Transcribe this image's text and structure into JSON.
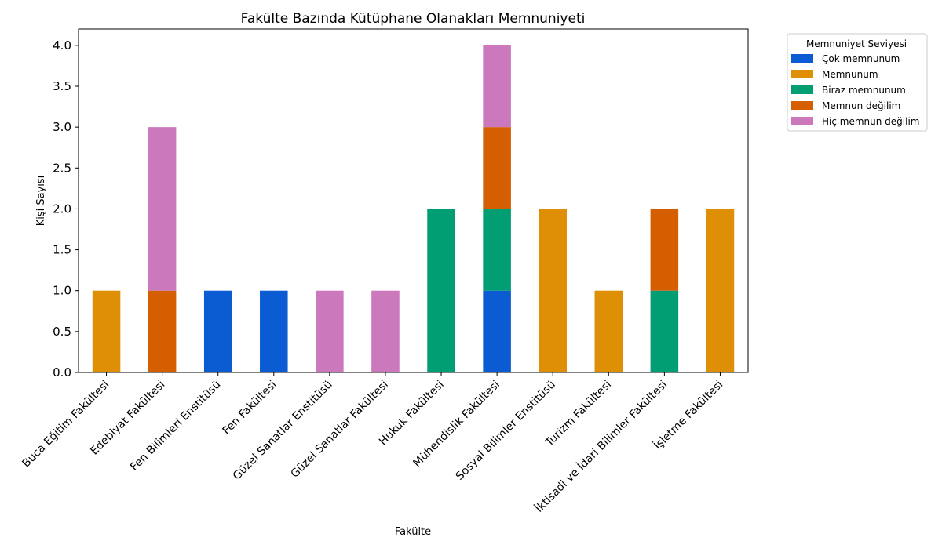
{
  "chart_data": {
    "type": "bar",
    "stacked": true,
    "title": "Fakülte Bazında Kütüphane Olanakları Memnuniyeti",
    "xlabel": "Fakülte",
    "ylabel": "Kişi Sayısı",
    "ylim": [
      0,
      4.2
    ],
    "yticks": [
      "0.0",
      "0.5",
      "1.0",
      "1.5",
      "2.0",
      "2.5",
      "3.0",
      "3.5",
      "4.0"
    ],
    "grid": false,
    "legend_title": "Memnuniyet Seviyesi",
    "legend_position": "upper-right-outside",
    "categories": [
      "Buca Eğitim Fakültesi",
      "Edebiyat Fakültesi",
      "Fen Bilimleri Enstitüsü",
      "Fen Fakültesi",
      "Güzel Sanatlar Enstitüsü",
      "Güzel Sanatlar Fakültesi",
      "Hukuk Fakültesi",
      "Mühendislik Fakültesi",
      "Sosyal Bilimler Enstitüsü",
      "Turizm Fakültesi",
      "İktisadi ve İdari Bilimler Fakültesi",
      "İşletme Fakültesi"
    ],
    "series": [
      {
        "name": "Çok memnunum",
        "color": "#0b5bd3",
        "values": [
          0,
          0,
          1,
          1,
          0,
          0,
          0,
          1,
          0,
          0,
          0,
          0
        ]
      },
      {
        "name": "Memnunum",
        "color": "#de8f05",
        "values": [
          1,
          0,
          0,
          0,
          0,
          0,
          0,
          0,
          2,
          1,
          0,
          2
        ]
      },
      {
        "name": "Biraz memnunum",
        "color": "#029e73",
        "values": [
          0,
          0,
          0,
          0,
          0,
          0,
          2,
          1,
          0,
          0,
          1,
          0
        ]
      },
      {
        "name": "Memnun değilim",
        "color": "#d55e00",
        "values": [
          0,
          1,
          0,
          0,
          0,
          0,
          0,
          1,
          0,
          0,
          1,
          0
        ]
      },
      {
        "name": "Hiç memnun değilim",
        "color": "#cc78bc",
        "values": [
          0,
          2,
          0,
          0,
          1,
          1,
          0,
          1,
          0,
          0,
          0,
          0
        ]
      }
    ]
  }
}
